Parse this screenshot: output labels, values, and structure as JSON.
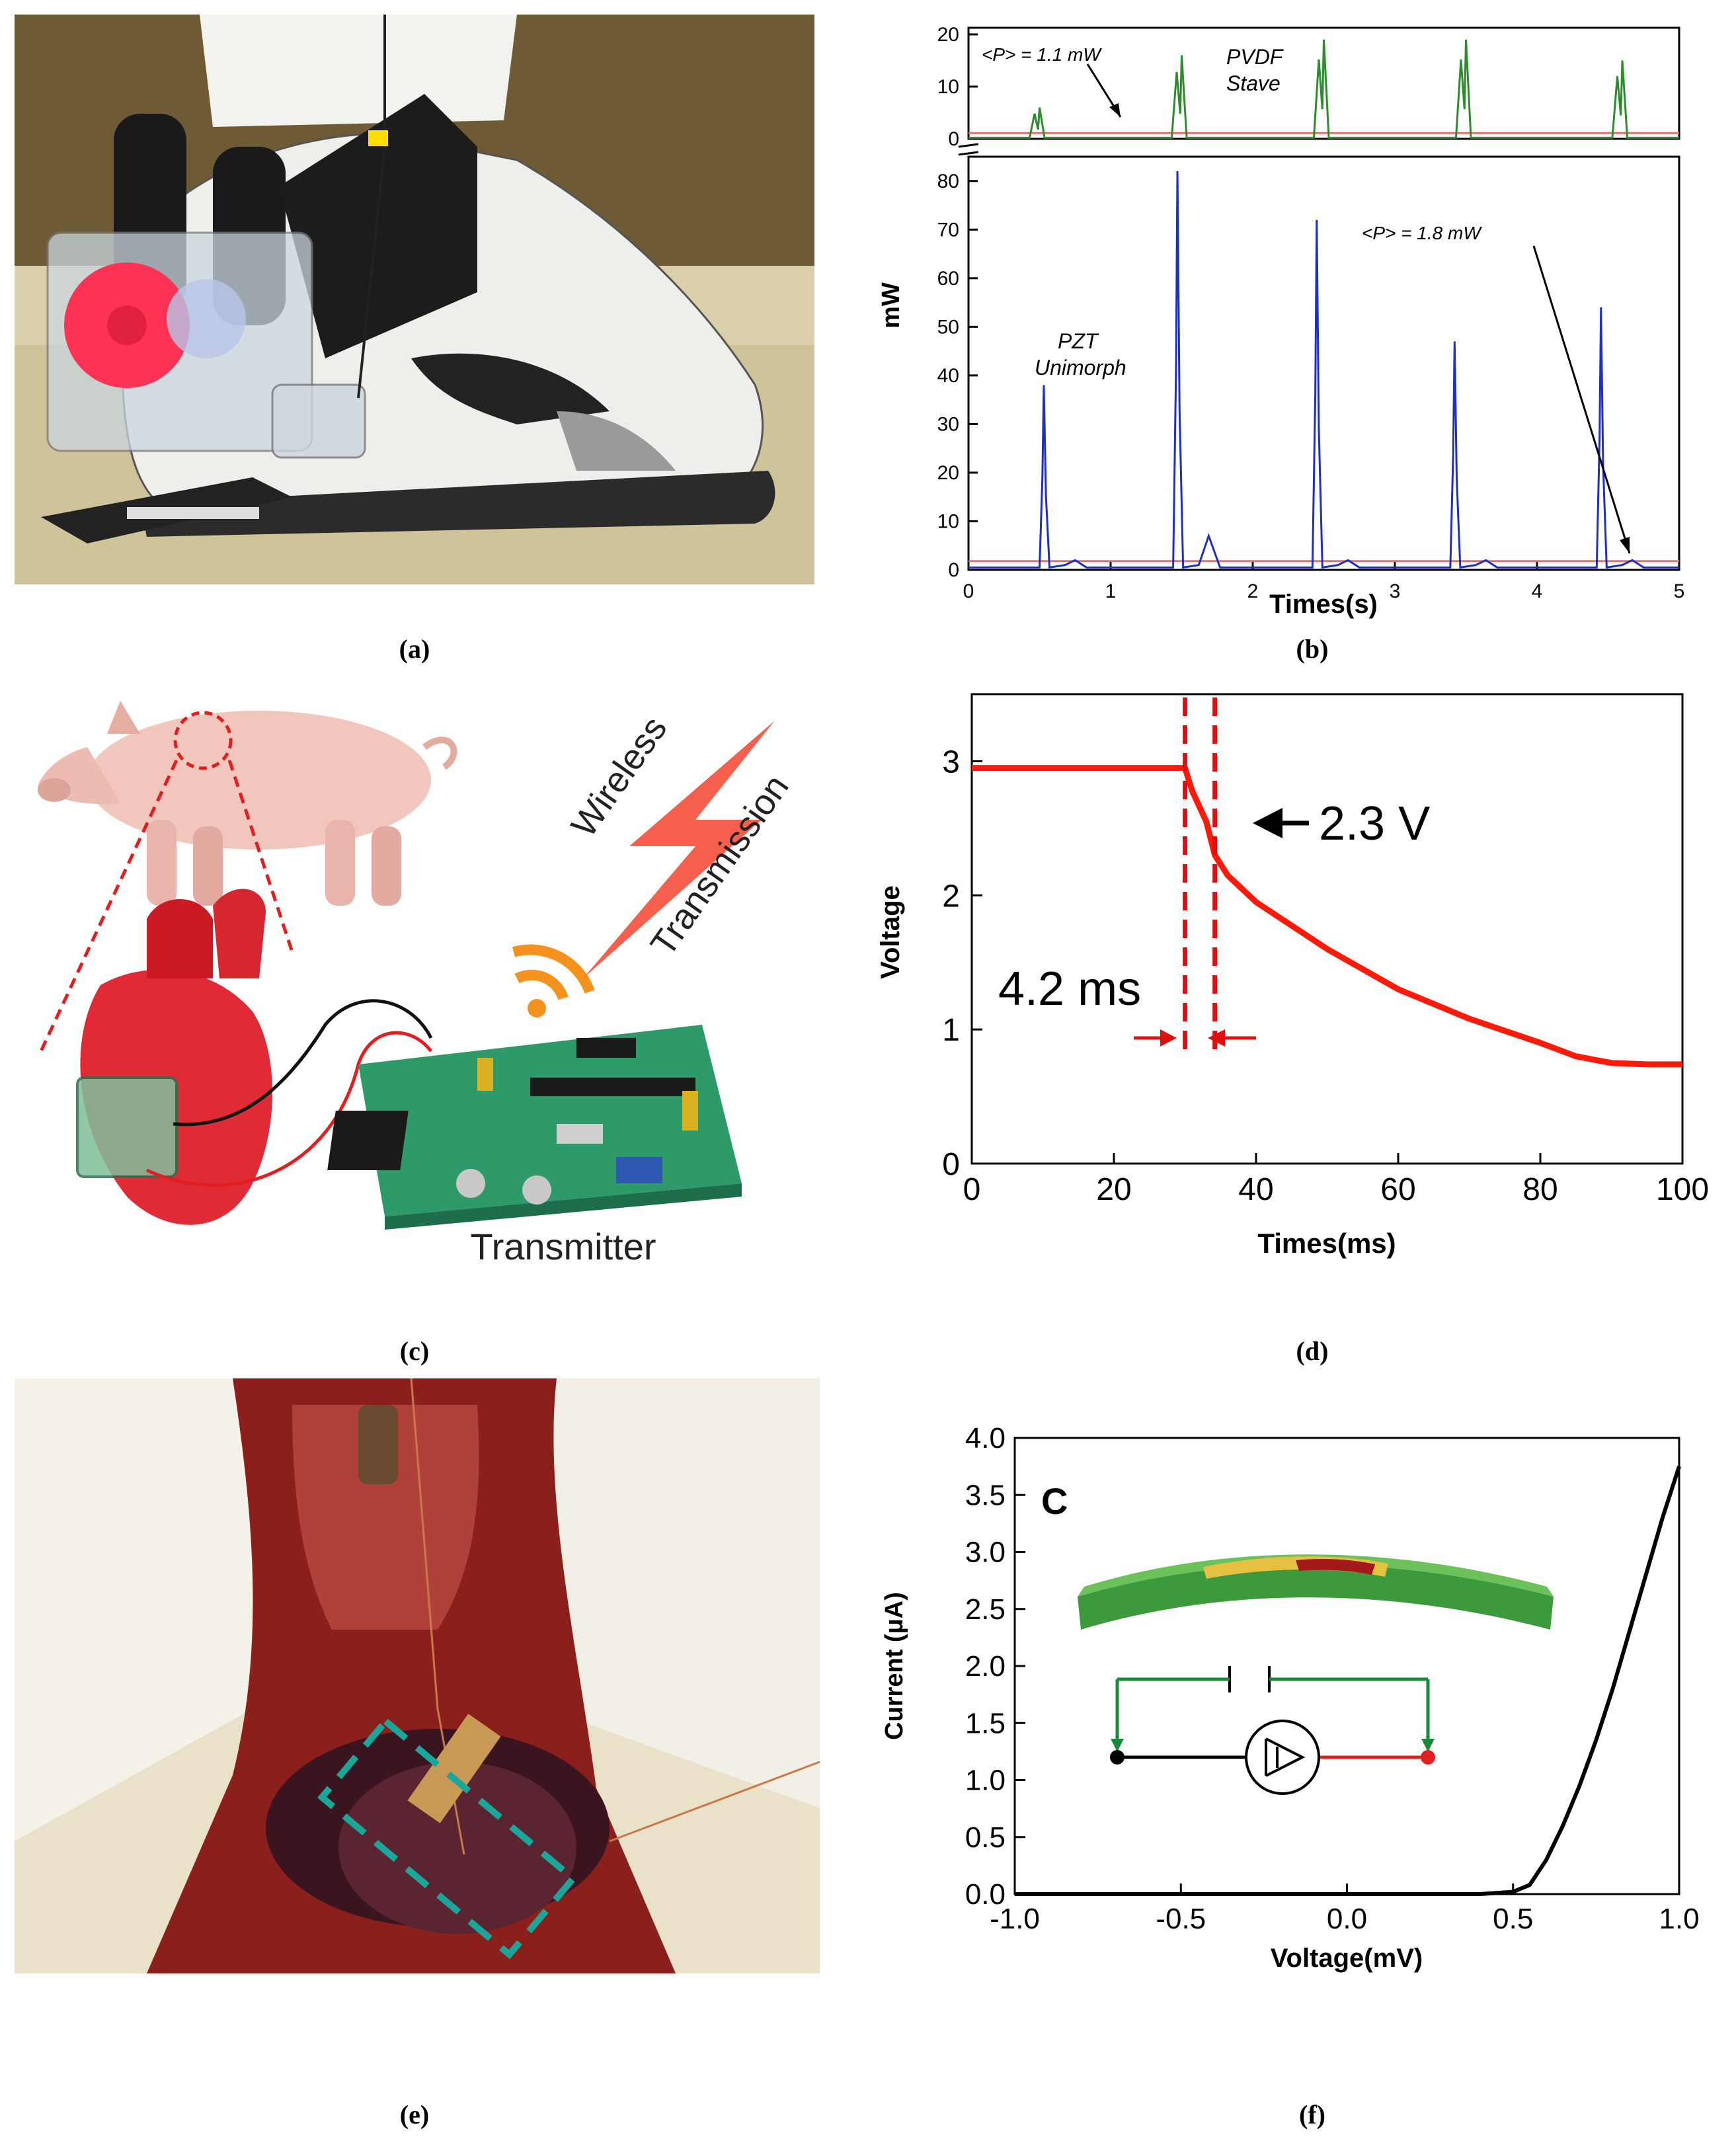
{
  "captions": {
    "a": "(a)",
    "b": "(b)",
    "c": "(c)",
    "d": "(d)",
    "e": "(e)",
    "f": "(f)"
  },
  "panel_c": {
    "wireless_line1": "Wireless",
    "wireless_line2": "Transmission",
    "transmitter_label": "Transmitter"
  },
  "chart_data": [
    {
      "panel": "b",
      "type": "line",
      "xlabel": "Times(s)",
      "ylabel": "mW",
      "xlim": [
        0,
        5
      ],
      "xticks": [
        0,
        1,
        2,
        3,
        4,
        5
      ],
      "top_axis": {
        "ylim": [
          0,
          20
        ],
        "yticks": [
          0,
          10,
          20
        ]
      },
      "bottom_axis": {
        "ylim": [
          0,
          80
        ],
        "yticks": [
          0,
          10,
          20,
          30,
          40,
          50,
          60,
          70,
          80
        ]
      },
      "annotations": [
        "<P> = 1.1 mW",
        "PVDF",
        "Stave",
        "PZT",
        "Unimorph",
        "<P> = 1.8 mW"
      ],
      "series": [
        {
          "name": "PVDF Stave",
          "color": "#2e8b2e",
          "peaks_x": [
            0.5,
            1.5,
            2.5,
            3.5,
            4.6
          ],
          "peaks_y": [
            6,
            16,
            19,
            19,
            15
          ],
          "average": 1.1
        },
        {
          "name": "PZT Unimorph",
          "color": "#1f2fbf",
          "peaks_x": [
            0.53,
            1.47,
            2.45,
            3.42,
            4.45
          ],
          "peaks_y": [
            38,
            82,
            72,
            47,
            54
          ],
          "average": 1.8
        }
      ]
    },
    {
      "panel": "d",
      "type": "line",
      "xlabel": "Times(ms)",
      "ylabel": "Voltage",
      "xlim": [
        0,
        100
      ],
      "ylim": [
        0,
        3.5
      ],
      "xticks": [
        0,
        20,
        40,
        60,
        80,
        100
      ],
      "yticks": [
        0,
        1,
        2,
        3
      ],
      "annotations": [
        "2.3 V",
        "4.2 ms"
      ],
      "series": [
        {
          "color": "#ff1a0a",
          "x": [
            0,
            30,
            31,
            33,
            34.2,
            36,
            40,
            50,
            60,
            70,
            80,
            85,
            90,
            95,
            100
          ],
          "y": [
            2.95,
            2.95,
            2.78,
            2.55,
            2.3,
            2.15,
            1.95,
            1.6,
            1.3,
            1.08,
            0.9,
            0.8,
            0.75,
            0.74,
            0.74
          ]
        }
      ],
      "markers_x": [
        30,
        34.2
      ]
    },
    {
      "panel": "f",
      "type": "line",
      "xlabel": "Voltage(mV)",
      "ylabel": "Current (μA)",
      "inset_letter": "C",
      "xlim": [
        -1.0,
        1.0
      ],
      "ylim": [
        0,
        4.0
      ],
      "xticks": [
        "-1.0",
        "-0.5",
        "0.0",
        "0.5",
        "1.0"
      ],
      "yticks": [
        "0.0",
        "0.5",
        "1.0",
        "1.5",
        "2.0",
        "2.5",
        "3.0",
        "3.5",
        "4.0"
      ],
      "series": [
        {
          "color": "#000000",
          "x": [
            -1.0,
            -0.5,
            0.0,
            0.4,
            0.5,
            0.55,
            0.6,
            0.65,
            0.7,
            0.75,
            0.8,
            0.85,
            0.9,
            0.95,
            1.0
          ],
          "y": [
            0,
            0,
            0,
            0,
            0.02,
            0.08,
            0.3,
            0.6,
            0.95,
            1.35,
            1.8,
            2.3,
            2.8,
            3.3,
            3.75
          ]
        }
      ]
    }
  ]
}
